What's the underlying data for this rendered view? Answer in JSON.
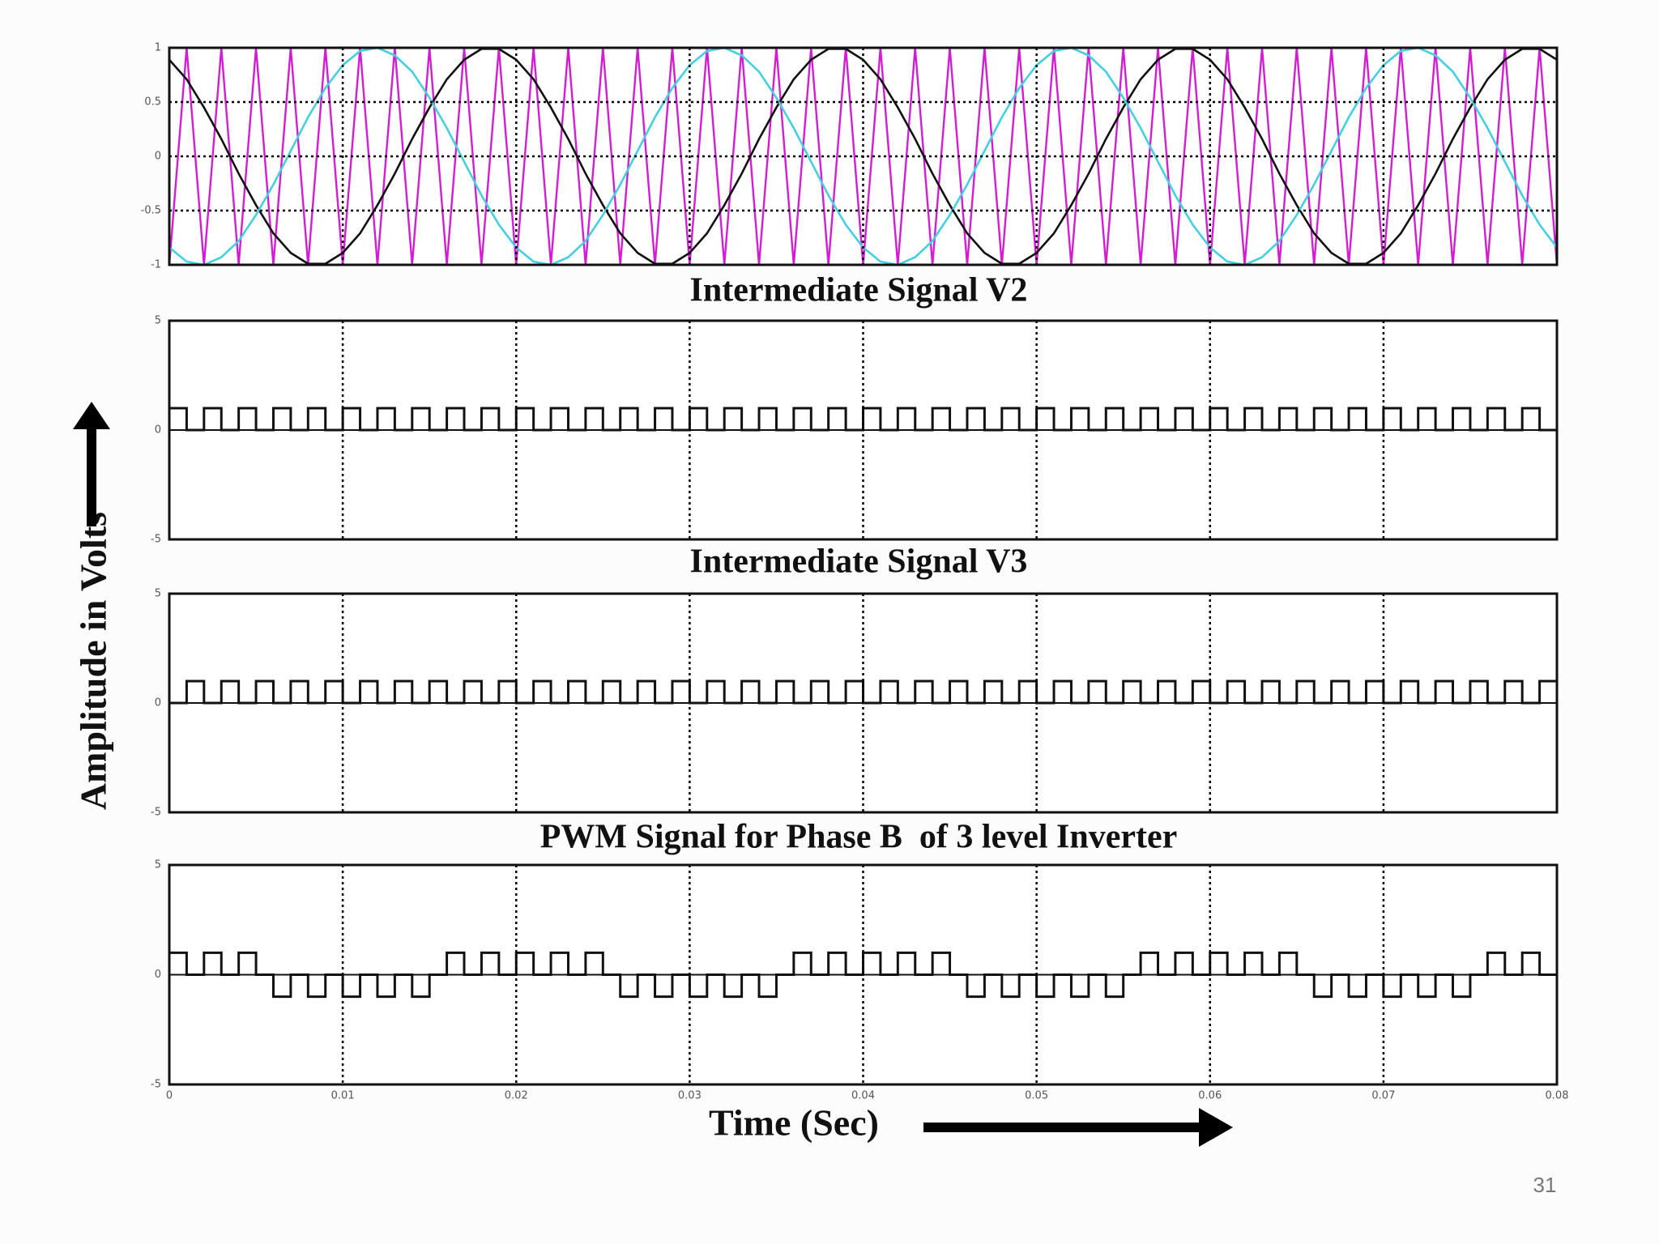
{
  "chart_data": {
    "x": [
      0,
      0.001,
      0.002,
      0.003,
      0.004,
      0.005,
      0.006,
      0.007,
      0.008,
      0.009,
      0.01,
      0.011,
      0.012,
      0.013,
      0.014,
      0.015,
      0.016,
      0.017,
      0.018,
      0.019,
      0.02,
      0.021,
      0.022,
      0.023,
      0.024,
      0.025,
      0.026,
      0.027,
      0.028,
      0.029,
      0.03,
      0.031,
      0.032,
      0.033,
      0.034,
      0.035,
      0.036,
      0.037,
      0.038,
      0.039,
      0.04,
      0.041,
      0.042,
      0.043,
      0.044,
      0.045,
      0.046,
      0.047,
      0.048,
      0.049,
      0.05,
      0.051,
      0.052,
      0.053,
      0.054,
      0.055,
      0.056,
      0.057,
      0.058,
      0.059,
      0.06,
      0.061,
      0.062,
      0.063,
      0.064,
      0.065,
      0.066,
      0.067,
      0.068,
      0.069,
      0.07,
      0.071,
      0.072,
      0.073,
      0.074,
      0.075,
      0.076,
      0.077,
      0.078,
      0.079,
      0.08
    ],
    "xlim": [
      0,
      0.08
    ],
    "xticks": [
      0,
      0.01,
      0.02,
      0.03,
      0.04,
      0.05,
      0.06,
      0.07,
      0.08
    ],
    "xlabel": "Time (Sec)",
    "ylabel": "Amplitude in Volts",
    "panels": [
      {
        "type": "line",
        "ylim": [
          -1,
          1
        ],
        "yticks": [
          1,
          0.5,
          0,
          -0.5,
          -1
        ],
        "grid": "both",
        "series": [
          {
            "color": "#d21ed2",
            "values": [
              -1,
              1,
              -1,
              1,
              -1,
              1,
              -1,
              1,
              -1,
              1,
              -1,
              1,
              -1,
              1,
              -1,
              1,
              -1,
              1,
              -1,
              1,
              -1,
              1,
              -1,
              1,
              -1,
              1,
              -1,
              1,
              -1,
              1,
              -1,
              1,
              -1,
              1,
              -1,
              1,
              -1,
              1,
              -1,
              1,
              -1,
              1,
              -1,
              1,
              -1,
              1,
              -1,
              1,
              -1,
              1,
              -1,
              1,
              -1,
              1,
              -1,
              1,
              -1,
              1,
              -1,
              1,
              -1,
              1,
              -1,
              1,
              -1,
              1,
              -1,
              1,
              -1,
              1,
              -1,
              1,
              -1,
              1,
              -1,
              1,
              -1,
              1,
              -1,
              1,
              -1
            ]
          },
          {
            "color": "#111111",
            "values": [
              0.89,
              0.71,
              0.45,
              0.16,
              -0.16,
              -0.45,
              -0.71,
              -0.89,
              -0.99,
              -0.99,
              -0.89,
              -0.71,
              -0.45,
              -0.16,
              0.16,
              0.45,
              0.71,
              0.89,
              0.99,
              0.99,
              0.89,
              0.71,
              0.45,
              0.16,
              -0.16,
              -0.45,
              -0.71,
              -0.89,
              -0.99,
              -0.99,
              -0.89,
              -0.71,
              -0.45,
              -0.16,
              0.16,
              0.45,
              0.71,
              0.89,
              0.99,
              0.99,
              0.89,
              0.71,
              0.45,
              0.16,
              -0.16,
              -0.45,
              -0.71,
              -0.89,
              -0.99,
              -0.99,
              -0.89,
              -0.71,
              -0.45,
              -0.16,
              0.16,
              0.45,
              0.71,
              0.89,
              0.99,
              0.99,
              0.89,
              0.71,
              0.45,
              0.16,
              -0.16,
              -0.45,
              -0.71,
              -0.89,
              -0.99,
              -0.99,
              -0.89,
              -0.71,
              -0.45,
              -0.16,
              0.16,
              0.45,
              0.71,
              0.89,
              0.99,
              0.99,
              0.89
            ]
          },
          {
            "color": "#46cfe0",
            "values": [
              -0.84,
              -0.97,
              -1,
              -0.93,
              -0.78,
              -0.54,
              -0.26,
              0.05,
              0.36,
              0.63,
              0.84,
              0.97,
              1,
              0.93,
              0.78,
              0.54,
              0.26,
              -0.05,
              -0.36,
              -0.63,
              -0.84,
              -0.97,
              -1,
              -0.93,
              -0.78,
              -0.54,
              -0.26,
              0.05,
              0.36,
              0.63,
              0.84,
              0.97,
              1,
              0.93,
              0.78,
              0.54,
              0.26,
              -0.05,
              -0.36,
              -0.63,
              -0.84,
              -0.97,
              -1,
              -0.93,
              -0.78,
              -0.54,
              -0.26,
              0.05,
              0.36,
              0.63,
              0.84,
              0.97,
              1,
              0.93,
              0.78,
              0.54,
              0.26,
              -0.05,
              -0.36,
              -0.63,
              -0.84,
              -0.97,
              -1,
              -0.93,
              -0.78,
              -0.54,
              -0.26,
              0.05,
              0.36,
              0.63,
              0.84,
              0.97,
              1,
              0.93,
              0.78,
              0.54,
              0.26,
              -0.05,
              -0.36,
              -0.63,
              -0.84
            ]
          }
        ]
      },
      {
        "type": "step",
        "title": "Intermediate Signal V2",
        "ylim": [
          -5,
          5
        ],
        "yticks": [
          5,
          0,
          -5
        ],
        "grid": "x",
        "series": [
          {
            "color": "#111111",
            "values": [
              1,
              0,
              1,
              0,
              1,
              0,
              1,
              0,
              1,
              0,
              1,
              0,
              1,
              0,
              1,
              0,
              1,
              0,
              1,
              0,
              1,
              0,
              1,
              0,
              1,
              0,
              1,
              0,
              1,
              0,
              1,
              0,
              1,
              0,
              1,
              0,
              1,
              0,
              1,
              0,
              1,
              0,
              1,
              0,
              1,
              0,
              1,
              0,
              1,
              0,
              1,
              0,
              1,
              0,
              1,
              0,
              1,
              0,
              1,
              0,
              1,
              0,
              1,
              0,
              1,
              0,
              1,
              0,
              1,
              0,
              1,
              0,
              1,
              0,
              1,
              0,
              1,
              0,
              1,
              0,
              1
            ]
          }
        ]
      },
      {
        "type": "step",
        "title": "Intermediate Signal V3",
        "ylim": [
          -5,
          5
        ],
        "yticks": [
          5,
          0,
          -5
        ],
        "grid": "x",
        "series": [
          {
            "color": "#111111",
            "values": [
              0,
              1,
              0,
              1,
              0,
              1,
              0,
              1,
              0,
              1,
              0,
              1,
              0,
              1,
              0,
              1,
              0,
              1,
              0,
              1,
              0,
              1,
              0,
              1,
              0,
              1,
              0,
              1,
              0,
              1,
              0,
              1,
              0,
              1,
              0,
              1,
              0,
              1,
              0,
              1,
              0,
              1,
              0,
              1,
              0,
              1,
              0,
              1,
              0,
              1,
              0,
              1,
              0,
              1,
              0,
              1,
              0,
              1,
              0,
              1,
              0,
              1,
              0,
              1,
              0,
              1,
              0,
              1,
              0,
              1,
              0,
              1,
              0,
              1,
              0,
              1,
              0,
              1,
              0,
              1,
              0
            ]
          }
        ]
      },
      {
        "type": "step",
        "title": "PWM Signal for Phase B  of 3 level Inverter",
        "ylim": [
          -5,
          5
        ],
        "yticks": [
          5,
          0,
          -5
        ],
        "grid": "x",
        "xticklabels": true,
        "series": [
          {
            "color": "#111111",
            "values": [
              1,
              0,
              1,
              0,
              1,
              0,
              -1,
              0,
              -1,
              0,
              -1,
              0,
              -1,
              0,
              -1,
              0,
              1,
              0,
              1,
              0,
              1,
              0,
              1,
              0,
              1,
              0,
              -1,
              0,
              -1,
              0,
              -1,
              0,
              -1,
              0,
              -1,
              0,
              1,
              0,
              1,
              0,
              1,
              0,
              1,
              0,
              1,
              0,
              -1,
              0,
              -1,
              0,
              -1,
              0,
              -1,
              0,
              -1,
              0,
              1,
              0,
              1,
              0,
              1,
              0,
              1,
              0,
              1,
              0,
              -1,
              0,
              -1,
              0,
              -1,
              0,
              -1,
              0,
              -1,
              0,
              1,
              0,
              1,
              0,
              1
            ]
          }
        ]
      }
    ]
  },
  "slide_number": "31"
}
